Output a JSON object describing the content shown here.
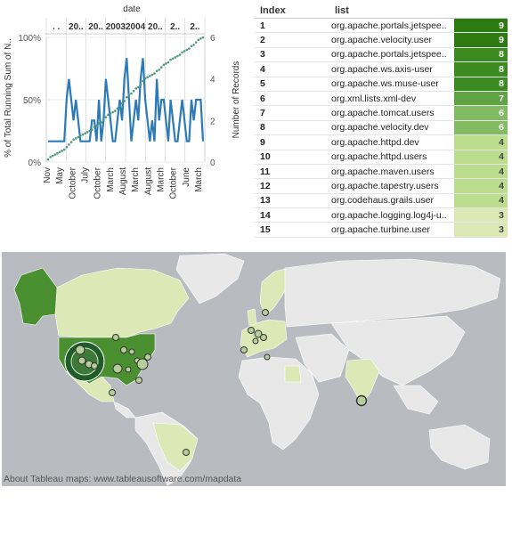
{
  "chart_data": {
    "type": "line",
    "title": "",
    "top_axis_label": "date",
    "top_year_labels": [
      ". .",
      "20..",
      "20..",
      "2003",
      "2004",
      "20..",
      "2..",
      "2.."
    ],
    "bottom_month_labels": [
      "Nov",
      "May",
      "October",
      "July",
      "October",
      "March",
      "August",
      "March",
      "August",
      "March",
      "October",
      "June",
      "March"
    ],
    "ylabel_left": "% of Total Running Sum of N..",
    "ylabel_right": "Number of Records",
    "y_left_ticks": [
      "0%",
      "50%",
      "100%"
    ],
    "y_right_ticks": [
      "0",
      "2",
      "4",
      "6"
    ],
    "y_left_range": [
      0,
      1.0
    ],
    "y_right_range": [
      0,
      6
    ],
    "series": [
      {
        "name": "",
        "axis": "right",
        "color": "#2d7ab8",
        "values": [
          1,
          1,
          1,
          1,
          1,
          1,
          1,
          1,
          3,
          4,
          3,
          2,
          3,
          2,
          1,
          1,
          1,
          1,
          1,
          2,
          2,
          1,
          3,
          1,
          2,
          4,
          3,
          2,
          1,
          1,
          2,
          3,
          2,
          4,
          5,
          3,
          1,
          2,
          3,
          2,
          4,
          5,
          3,
          2,
          1,
          2,
          1,
          4,
          2,
          3,
          3,
          2,
          1,
          3,
          2,
          1,
          1,
          2,
          3,
          2,
          1,
          1,
          3,
          2,
          3,
          3,
          3,
          1
        ]
      },
      {
        "name": "",
        "axis": "left",
        "color": "#4a9a7a",
        "style": "dotted",
        "values": [
          0.02,
          0.04,
          0.05,
          0.06,
          0.07,
          0.08,
          0.09,
          0.1,
          0.12,
          0.14,
          0.16,
          0.18,
          0.19,
          0.2,
          0.21,
          0.22,
          0.23,
          0.24,
          0.25,
          0.26,
          0.28,
          0.29,
          0.31,
          0.32,
          0.34,
          0.36,
          0.38,
          0.39,
          0.4,
          0.41,
          0.43,
          0.45,
          0.47,
          0.49,
          0.52,
          0.54,
          0.55,
          0.57,
          0.59,
          0.6,
          0.62,
          0.65,
          0.67,
          0.68,
          0.69,
          0.7,
          0.71,
          0.73,
          0.74,
          0.76,
          0.78,
          0.79,
          0.8,
          0.82,
          0.83,
          0.84,
          0.85,
          0.86,
          0.88,
          0.89,
          0.9,
          0.91,
          0.93,
          0.94,
          0.96,
          0.98,
          0.99,
          1.0
        ]
      }
    ]
  },
  "table": {
    "header_index": "Index",
    "header_list": "list",
    "rows": [
      {
        "index": "1",
        "list": "org.apache.portals.jetspee..",
        "count": "9",
        "color": "#2e7a12"
      },
      {
        "index": "2",
        "list": "org.apache.velocity.user",
        "count": "9",
        "color": "#2e7a12"
      },
      {
        "index": "3",
        "list": "org.apache.portals.jetspee..",
        "count": "8",
        "color": "#3c8a22"
      },
      {
        "index": "4",
        "list": "org.apache.ws.axis-user",
        "count": "8",
        "color": "#3c8a22"
      },
      {
        "index": "5",
        "list": "org.apache.ws.muse-user",
        "count": "8",
        "color": "#3c8a22"
      },
      {
        "index": "6",
        "list": "org.xml.lists.xml-dev",
        "count": "7",
        "color": "#5fa345"
      },
      {
        "index": "7",
        "list": "org.apache.tomcat.users",
        "count": "6",
        "color": "#82bb62"
      },
      {
        "index": "8",
        "list": "org.apache.velocity.dev",
        "count": "6",
        "color": "#82bb62"
      },
      {
        "index": "9",
        "list": "org.apache.httpd.dev",
        "count": "4",
        "color": "#bcdc8e"
      },
      {
        "index": "10",
        "list": "org.apache.httpd.users",
        "count": "4",
        "color": "#bcdc8e"
      },
      {
        "index": "11",
        "list": "org.apache.maven.users",
        "count": "4",
        "color": "#bcdc8e"
      },
      {
        "index": "12",
        "list": "org.apache.tapestry.users",
        "count": "4",
        "color": "#bcdc8e"
      },
      {
        "index": "13",
        "list": "org.codehaus.grails.user",
        "count": "4",
        "color": "#bcdc8e"
      },
      {
        "index": "14",
        "list": "org.apache.logging.log4j-u..",
        "count": "3",
        "color": "#dce9b6"
      },
      {
        "index": "15",
        "list": "org.apache.turbine.user",
        "count": "3",
        "color": "#dce9b6"
      }
    ]
  },
  "map": {
    "caption": "About Tableau maps: www.tableausoftware.com/mapdata",
    "ocean_color": "#b8bcc0",
    "land_color": "#e8e8e8",
    "highlight_light": "#dce9b6",
    "highlight_dark": "#4a8f30"
  }
}
